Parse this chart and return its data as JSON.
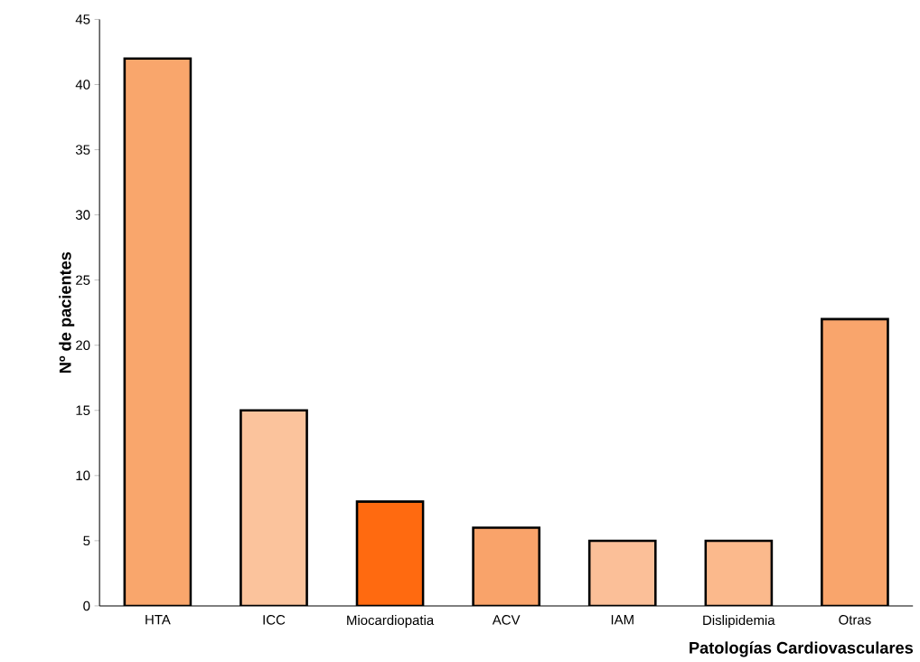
{
  "chart_data": {
    "type": "bar",
    "xlabel": "Patologías Cardiovasculares",
    "ylabel": "Nº de pacientes",
    "categories": [
      "HTA",
      "ICC",
      "Miocardiopatia",
      "ACV",
      "IAM",
      "Dislipidemia",
      "Otras"
    ],
    "values": [
      42,
      15,
      8,
      6,
      5,
      5,
      22
    ],
    "colors": [
      "#f9a66c",
      "#fbc39c",
      "#ff6a10",
      "#f9a36a",
      "#fbbf98",
      "#fbb98c",
      "#f9a56c"
    ],
    "ylim": [
      0,
      45
    ],
    "yticks": [
      0,
      5,
      10,
      15,
      20,
      25,
      30,
      35,
      40,
      45
    ],
    "grid": false
  }
}
